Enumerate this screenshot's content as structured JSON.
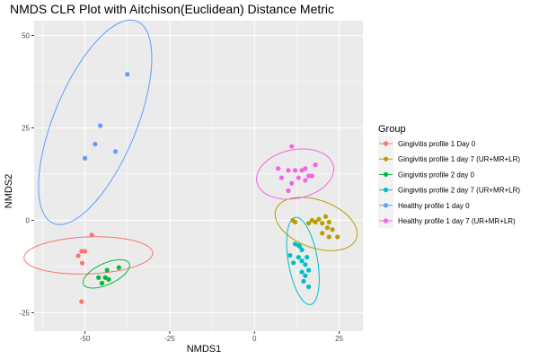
{
  "chart_data": {
    "type": "scatter",
    "title": "NMDS CLR Plot with Aitchison(Euclidean) Distance Metric",
    "xlabel": "NMDS1",
    "ylabel": "NMDS2",
    "xlim": [
      -65,
      32
    ],
    "ylim": [
      -30,
      54
    ],
    "x_ticks": [
      -50,
      -25,
      0,
      25
    ],
    "x_tick_labels": [
      "-50",
      "-25",
      "0",
      "25"
    ],
    "y_ticks": [
      -25,
      0,
      25,
      50
    ],
    "y_tick_labels": [
      "-25",
      "0",
      "25",
      "50"
    ],
    "grid": true,
    "legend": {
      "title": "Group",
      "placement": "right"
    },
    "series": [
      {
        "name": "Gingivitis profile 1 Day 0",
        "color": "#F8766D",
        "points": [
          [
            -50,
            -8.4
          ],
          [
            -51,
            -8.4
          ],
          [
            -48,
            -4
          ],
          [
            -52,
            -9.6
          ],
          [
            -50.8,
            -11.6
          ],
          [
            -51,
            -22
          ]
        ],
        "ellipse": {
          "center": [
            -49,
            -9.5
          ],
          "semi_axes": [
            5,
            19
          ],
          "angle_deg": -88
        }
      },
      {
        "name": "Gingivitis profile 1 day 7 (UR+MR+LR)",
        "color": "#B79F00",
        "points": [
          [
            12,
            -0.5
          ],
          [
            11.3,
            0
          ],
          [
            17,
            0
          ],
          [
            18,
            -0.5
          ],
          [
            19,
            0.3
          ],
          [
            20,
            -0.8
          ],
          [
            16,
            -0.8
          ],
          [
            21,
            1
          ],
          [
            22,
            -0.5
          ],
          [
            23,
            -2.5
          ],
          [
            20,
            -3.5
          ],
          [
            22,
            -4.5
          ],
          [
            24.5,
            -4.5
          ],
          [
            21.5,
            -2
          ]
        ],
        "ellipse": {
          "center": [
            18.2,
            -1
          ],
          "semi_axes": [
            12.5,
            6.5
          ],
          "angle_deg": -17
        }
      },
      {
        "name": "Gingivitis profile 2 day 0",
        "color": "#00BA38",
        "points": [
          [
            -40,
            -12.8
          ],
          [
            -43.5,
            -13.5
          ],
          [
            -44,
            -15.5
          ],
          [
            -43,
            -16
          ],
          [
            -46,
            -15.5
          ],
          [
            -45,
            -17
          ]
        ],
        "ellipse": {
          "center": [
            -43.7,
            -14.5
          ],
          "semi_axes": [
            7.3,
            2.9
          ],
          "angle_deg": 22
        }
      },
      {
        "name": "Gingivitis profile 2 day 7 (UR+MR+LR)",
        "color": "#00BFC4",
        "points": [
          [
            12,
            -6.4
          ],
          [
            13,
            -6.8
          ],
          [
            13.3,
            -7
          ],
          [
            14,
            -8
          ],
          [
            10.5,
            -9.5
          ],
          [
            13,
            -10
          ],
          [
            15.5,
            -10
          ],
          [
            14,
            -11
          ],
          [
            15,
            -12
          ],
          [
            16,
            -13.5
          ],
          [
            14,
            -14
          ],
          [
            15,
            -15
          ],
          [
            14.5,
            -16.5
          ],
          [
            16,
            -18
          ],
          [
            11.5,
            -11.5
          ]
        ],
        "ellipse": {
          "center": [
            14.3,
            -11
          ],
          "semi_axes": [
            12,
            4.3
          ],
          "angle_deg": -79
        }
      },
      {
        "name": "Healthy profile 1 day 0",
        "color": "#619CFF",
        "points": [
          [
            -37.5,
            39.5
          ],
          [
            -45.5,
            25.6
          ],
          [
            -47,
            20.6
          ],
          [
            -41,
            18.6
          ],
          [
            -50,
            16.8
          ]
        ],
        "ellipse": {
          "center": [
            -47,
            26.5
          ],
          "semi_axes": [
            30,
            12
          ],
          "angle_deg": 65
        }
      },
      {
        "name": "Healthy profile 1 day 7 (UR+MR+LR)",
        "color": "#F564E3",
        "points": [
          [
            11,
            20
          ],
          [
            15,
            14
          ],
          [
            18,
            15
          ],
          [
            7,
            14
          ],
          [
            10,
            13.5
          ],
          [
            12,
            13.5
          ],
          [
            14,
            13.5
          ],
          [
            16,
            12
          ],
          [
            8,
            11.5
          ],
          [
            13,
            11.5
          ],
          [
            11,
            10
          ],
          [
            15,
            10.8
          ],
          [
            17,
            12
          ],
          [
            10,
            8
          ]
        ],
        "ellipse": {
          "center": [
            12,
            12.5
          ],
          "semi_axes": [
            11.5,
            6.6
          ],
          "angle_deg": 10
        }
      }
    ]
  }
}
